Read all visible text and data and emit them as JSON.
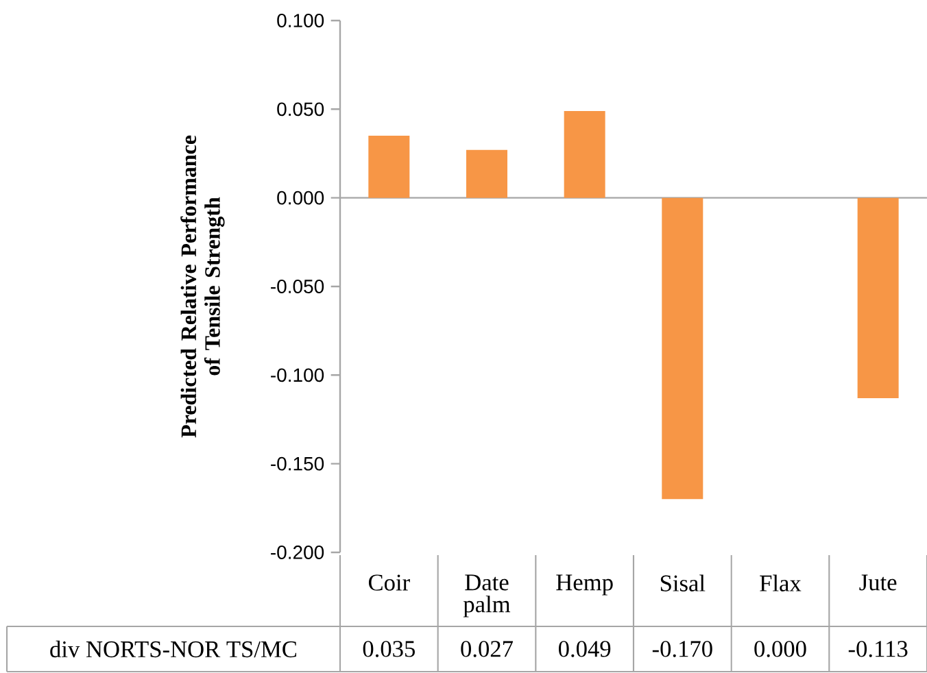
{
  "chart_data": {
    "type": "bar",
    "ylabel": "Predicted Relative Performance of Tensile Strength",
    "categories": [
      "Coir",
      "Date palm",
      "Hemp",
      "Sisal",
      "Flax",
      "Jute"
    ],
    "series": [
      {
        "name": "div NORTS-NOR TS/MC",
        "color": "#f79646",
        "values": [
          0.035,
          0.027,
          0.049,
          -0.17,
          0.0,
          -0.113
        ],
        "value_labels": [
          "0.035",
          "0.027",
          "0.049",
          "-0.170",
          "0.000",
          "-0.113"
        ]
      }
    ],
    "ylim": [
      -0.2,
      0.1
    ],
    "yticks": [
      {
        "value": 0.1,
        "label": "0.100"
      },
      {
        "value": 0.05,
        "label": "0.050"
      },
      {
        "value": 0,
        "label": "0.000"
      },
      {
        "value": -0.05,
        "label": "-0.050"
      },
      {
        "value": -0.1,
        "label": "-0.100"
      },
      {
        "value": -0.15,
        "label": "-0.150"
      },
      {
        "value": -0.2,
        "label": "-0.200"
      }
    ]
  }
}
